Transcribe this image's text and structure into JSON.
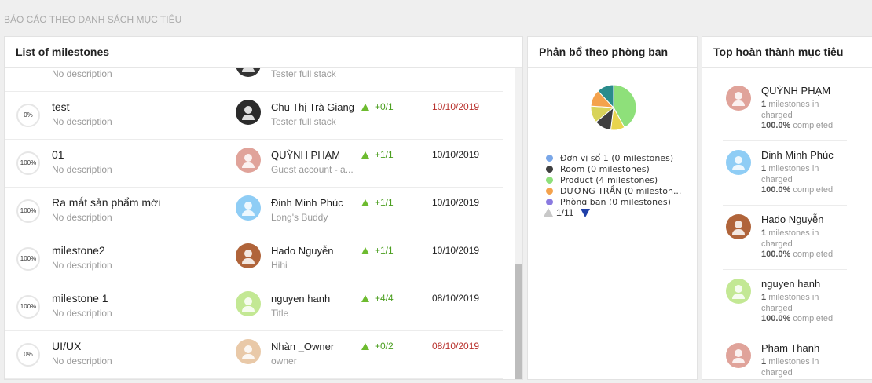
{
  "header": {
    "title": "BÁO CÁO THEO DANH SÁCH MỤC TIÊU"
  },
  "milestones": {
    "title": "List of milestones",
    "rows": [
      {
        "description": "No description",
        "role": "Tester full stack",
        "avatar_color": "#333333"
      },
      {
        "progress": "0%",
        "name": "test",
        "description": "No description",
        "owner": "Chu Thị Trà Giang",
        "role": "Tester full stack",
        "change": "+0/1",
        "date": "10/10/2019",
        "overdue": true,
        "avatar_color": "#2b2b2b"
      },
      {
        "progress": "100%",
        "name": "01",
        "description": "No description",
        "owner": "QUỲNH PHẠM",
        "role": "Guest account - a...",
        "change": "+1/1",
        "date": "10/10/2019",
        "overdue": false,
        "avatar_color": "#e0a39a"
      },
      {
        "progress": "100%",
        "name": "Ra mắt sản phẩm mới",
        "description": "No description",
        "owner": "Đinh Minh Phúc",
        "role": "Long's Buddy",
        "change": "+1/1",
        "date": "10/10/2019",
        "overdue": false,
        "avatar_color": "#8fcdf5"
      },
      {
        "progress": "100%",
        "name": "milestone2",
        "description": "No description",
        "owner": "Hado Nguyễn",
        "role": "Hihi",
        "change": "+1/1",
        "date": "10/10/2019",
        "overdue": false,
        "avatar_color": "#b0643a"
      },
      {
        "progress": "100%",
        "name": "milestone 1",
        "description": "No description",
        "owner": "nguyen hanh",
        "role": "Title",
        "change": "+4/4",
        "date": "08/10/2019",
        "overdue": false,
        "avatar_color": "#c3e894"
      },
      {
        "progress": "0%",
        "name": "UI/UX",
        "description": "No description",
        "owner": "Nhàn _Owner",
        "role": "owner",
        "change": "+0/2",
        "date": "08/10/2019",
        "overdue": true,
        "avatar_color": "#e9c9a8"
      }
    ]
  },
  "department_chart": {
    "title": "Phân bổ theo phòng ban",
    "slices": [
      {
        "value": 42,
        "color": "#8ee07a"
      },
      {
        "value": 10,
        "color": "#e8d44d"
      },
      {
        "value": 12,
        "color": "#404040"
      },
      {
        "value": 12,
        "color": "#d8d35a"
      },
      {
        "value": 12,
        "color": "#f4a24c"
      },
      {
        "value": 12,
        "color": "#2a8c8c"
      }
    ],
    "legend": [
      {
        "label": "Đơn vị số 1 (0 milestones)",
        "color": "#7aa7e8"
      },
      {
        "label": "Room (0 milestones)",
        "color": "#404040"
      },
      {
        "label": "Product (4 milestones)",
        "color": "#8ee07a"
      },
      {
        "label": "DƯƠNG TRẦN (0 mileston...",
        "color": "#f4a24c"
      },
      {
        "label": "Phòng ban (0 milestones)",
        "color": "#8a7ae0"
      }
    ],
    "page": "1/11"
  },
  "top": {
    "title": "Top hoàn thành mục tiêu",
    "count_label": "milestones in charged",
    "percent_label": "completed",
    "people": [
      {
        "name": "QUỲNH PHẠM",
        "count": 1,
        "percent": "100.0%",
        "avatar_color": "#e0a39a"
      },
      {
        "name": "Đinh Minh Phúc",
        "count": 1,
        "percent": "100.0%",
        "avatar_color": "#8fcdf5"
      },
      {
        "name": "Hado Nguyễn",
        "count": 1,
        "percent": "100.0%",
        "avatar_color": "#b0643a"
      },
      {
        "name": "nguyen hanh",
        "count": 1,
        "percent": "100.0%",
        "avatar_color": "#c3e894"
      },
      {
        "name": "Pham Thanh",
        "count": 1,
        "avatar_color": "#e0a39a"
      }
    ]
  }
}
